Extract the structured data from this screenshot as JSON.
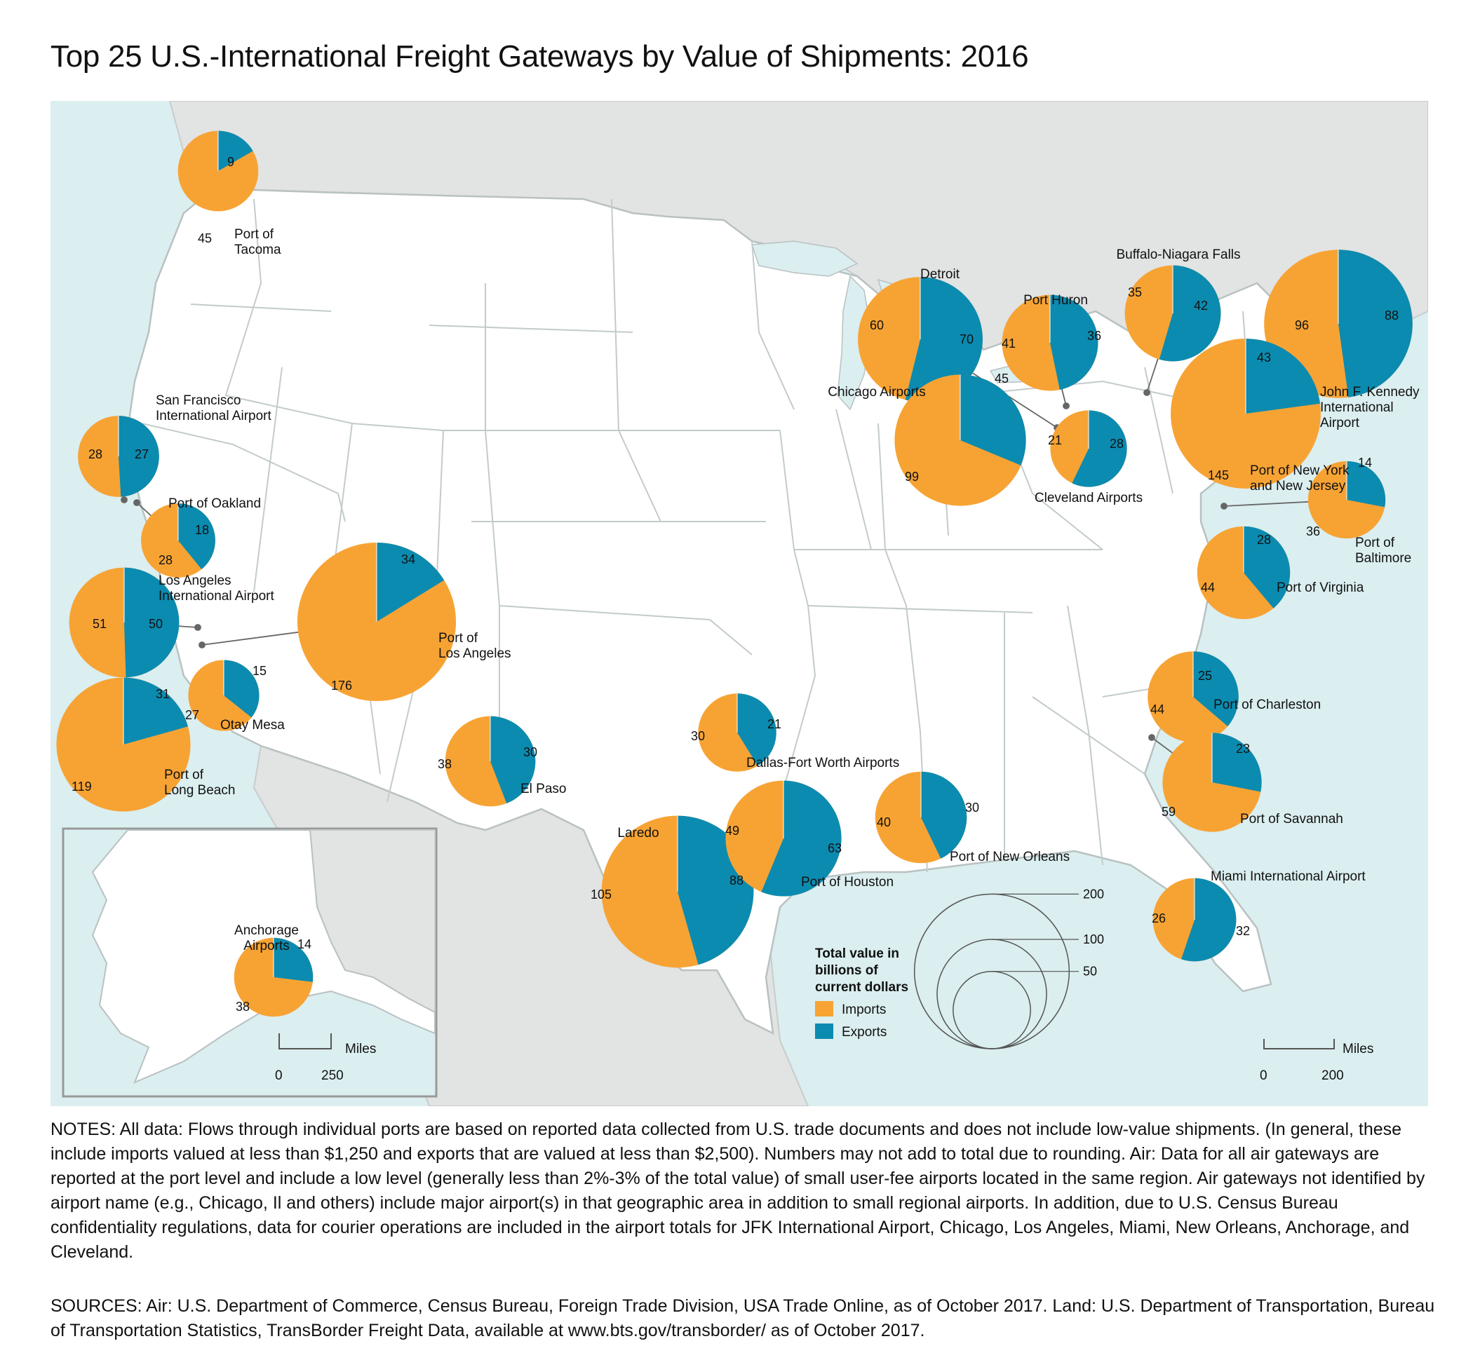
{
  "title": "Top 25 U.S.-International Freight Gateways by Value of Shipments: 2016",
  "colors": {
    "imports": "#f7a334",
    "exports": "#0b8bb0",
    "ocean": "#dbeef0",
    "foreign_land": "#e2e3e3",
    "us_land": "#ffffff",
    "border": "#b9c1c1"
  },
  "legend": {
    "title_lines": [
      "Total value in",
      "billions of",
      "current dollars"
    ],
    "imports_label": "Imports",
    "exports_label": "Exports",
    "size_values": [
      200,
      100,
      50
    ]
  },
  "scale_bars": {
    "main": {
      "zero": "0",
      "distance": "200",
      "unit": "Miles"
    },
    "inset": {
      "zero": "0",
      "distance": "250",
      "unit": "Miles"
    }
  },
  "gateways": [
    {
      "id": "port-of-tacoma",
      "name_lines": [
        "Port of",
        "Tacoma"
      ],
      "imports": 45,
      "exports": 9
    },
    {
      "id": "buffalo-niagara-falls",
      "name_lines": [
        "Buffalo-Niagara Falls"
      ],
      "imports": 35,
      "exports": 42
    },
    {
      "id": "detroit",
      "name_lines": [
        "Detroit"
      ],
      "imports": 60,
      "exports": 70
    },
    {
      "id": "port-huron",
      "name_lines": [
        "Port Huron"
      ],
      "imports": 41,
      "exports": 36
    },
    {
      "id": "jfk-international-airport",
      "name_lines": [
        "John F. Kennedy",
        "International",
        "Airport"
      ],
      "imports": 96,
      "exports": 88
    },
    {
      "id": "port-of-new-york-and-new-jersey",
      "name_lines": [
        "Port of New York",
        "and New Jersey"
      ],
      "imports": 145,
      "exports": 43
    },
    {
      "id": "chicago-airports",
      "name_lines": [
        "Chicago Airports"
      ],
      "imports": 99,
      "exports": 45
    },
    {
      "id": "cleveland-airports",
      "name_lines": [
        "Cleveland Airports"
      ],
      "imports": 21,
      "exports": 28
    },
    {
      "id": "san-francisco-international-airport",
      "name_lines": [
        "San Francisco",
        "International Airport"
      ],
      "imports": 28,
      "exports": 27
    },
    {
      "id": "port-of-oakland",
      "name_lines": [
        "Port of Oakland"
      ],
      "imports": 28,
      "exports": 18
    },
    {
      "id": "port-of-baltimore",
      "name_lines": [
        "Port of",
        "Baltimore"
      ],
      "imports": 36,
      "exports": 14
    },
    {
      "id": "port-of-virginia",
      "name_lines": [
        "Port of Virginia"
      ],
      "imports": 44,
      "exports": 28
    },
    {
      "id": "los-angeles-international-airport",
      "name_lines": [
        "Los Angeles",
        "International Airport"
      ],
      "imports": 51,
      "exports": 50
    },
    {
      "id": "port-of-los-angeles",
      "name_lines": [
        "Port of",
        "Los Angeles"
      ],
      "imports": 176,
      "exports": 34
    },
    {
      "id": "otay-mesa",
      "name_lines": [
        "Otay Mesa"
      ],
      "imports": 27,
      "exports": 15
    },
    {
      "id": "port-of-long-beach",
      "name_lines": [
        "Port of",
        "Long Beach"
      ],
      "imports": 119,
      "exports": 31
    },
    {
      "id": "el-paso",
      "name_lines": [
        "El Paso"
      ],
      "imports": 38,
      "exports": 30
    },
    {
      "id": "dallas-fort-worth-airports",
      "name_lines": [
        "Dallas-Fort Worth Airports"
      ],
      "imports": 30,
      "exports": 21
    },
    {
      "id": "port-of-charleston",
      "name_lines": [
        "Port of Charleston"
      ],
      "imports": 44,
      "exports": 25
    },
    {
      "id": "port-of-savannah",
      "name_lines": [
        "Port of Savannah"
      ],
      "imports": 59,
      "exports": 23
    },
    {
      "id": "laredo",
      "name_lines": [
        "Laredo"
      ],
      "imports": 105,
      "exports": 88
    },
    {
      "id": "port-of-houston",
      "name_lines": [
        "Port of Houston"
      ],
      "imports": 49,
      "exports": 63
    },
    {
      "id": "port-of-new-orleans",
      "name_lines": [
        "Port of New Orleans"
      ],
      "imports": 40,
      "exports": 30
    },
    {
      "id": "miami-international-airport",
      "name_lines": [
        "Miami International Airport"
      ],
      "imports": 26,
      "exports": 32
    },
    {
      "id": "anchorage-airports",
      "name_lines": [
        "Anchorage",
        "Airports"
      ],
      "imports": 38,
      "exports": 14
    }
  ],
  "notes": "NOTES: All data: Flows through individual ports are based on reported data collected from U.S. trade documents and does not include low-value shipments. (In general, these include imports valued at less than $1,250 and exports that are valued at less than $2,500). Numbers may not add to total due to rounding. Air: Data for all air gateways are reported at the port level and include a low level (generally less than 2%-3% of the total value) of small user-fee airports located in the same region. Air gateways not identified by airport name (e.g., Chicago, Il and others) include major airport(s) in that geographic area in addition to small regional airports. In addition, due to U.S. Census Bureau confidentiality regulations, data for courier operations are included in the airport totals for JFK International Airport, Chicago, Los Angeles, Miami, New Orleans, Anchorage, and Cleveland.",
  "sources": "SOURCES: Air: U.S. Department of Commerce, Census Bureau, Foreign Trade Division, USA Trade Online, as of October 2017. Land: U.S. Department of Transportation, Bureau of Transportation Statistics, TransBorder Freight Data, available at www.bts.gov/transborder/ as of October 2017."
}
